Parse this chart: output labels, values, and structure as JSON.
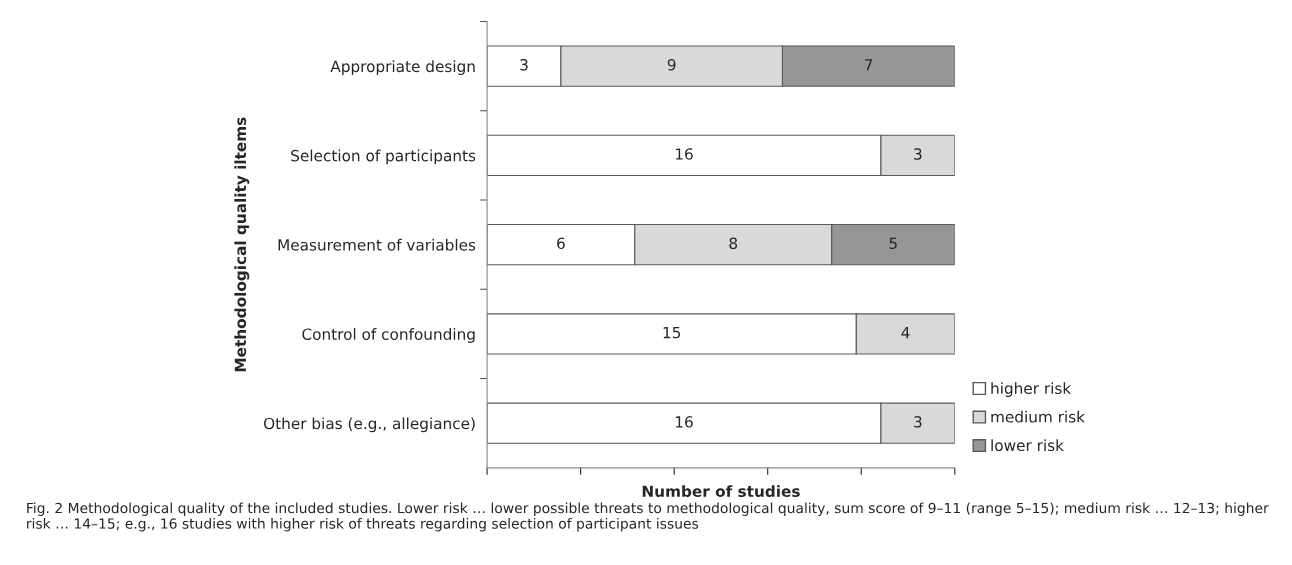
{
  "chart_data": {
    "type": "bar",
    "orientation": "horizontal",
    "stacked": true,
    "ylabel": "Methodological quality iltems",
    "xlabel": "Number of studies",
    "categories": [
      "Appropriate design",
      "Selection of participants",
      "Measurement of variables",
      "Control of confounding",
      "Other bias (e.g., allegiance)"
    ],
    "series": [
      {
        "name": "higher risk",
        "color": "#ffffff",
        "values": [
          3,
          16,
          6,
          15,
          16
        ]
      },
      {
        "name": "medium risk",
        "color": "#d9d9d9",
        "values": [
          9,
          3,
          8,
          4,
          3
        ]
      },
      {
        "name": "lower risk",
        "color": "#969696",
        "values": [
          7,
          null,
          5,
          null,
          null
        ]
      }
    ],
    "xlim": [
      0,
      19
    ],
    "xticks": [
      {
        "value": 0,
        "label": null
      },
      {
        "value": 3.8,
        "label": null
      },
      {
        "value": 7.6,
        "label": null
      },
      {
        "value": 11.4,
        "label": null
      },
      {
        "value": 15.2,
        "label": null
      },
      {
        "value": 19,
        "label": null
      }
    ],
    "data_labels": true,
    "legend": "bottom right",
    "grid": false,
    "annotations": [
      "Fig. 2 Methodological quality of the included studies. Lower risk … lower possible threats to methodological quality, sum score of 9–11 (range 5–15); medium risk … 12–13; higher risk … 14–15; e.g., 16 studies with higher risk of threats regarding selection of participant issues"
    ]
  }
}
